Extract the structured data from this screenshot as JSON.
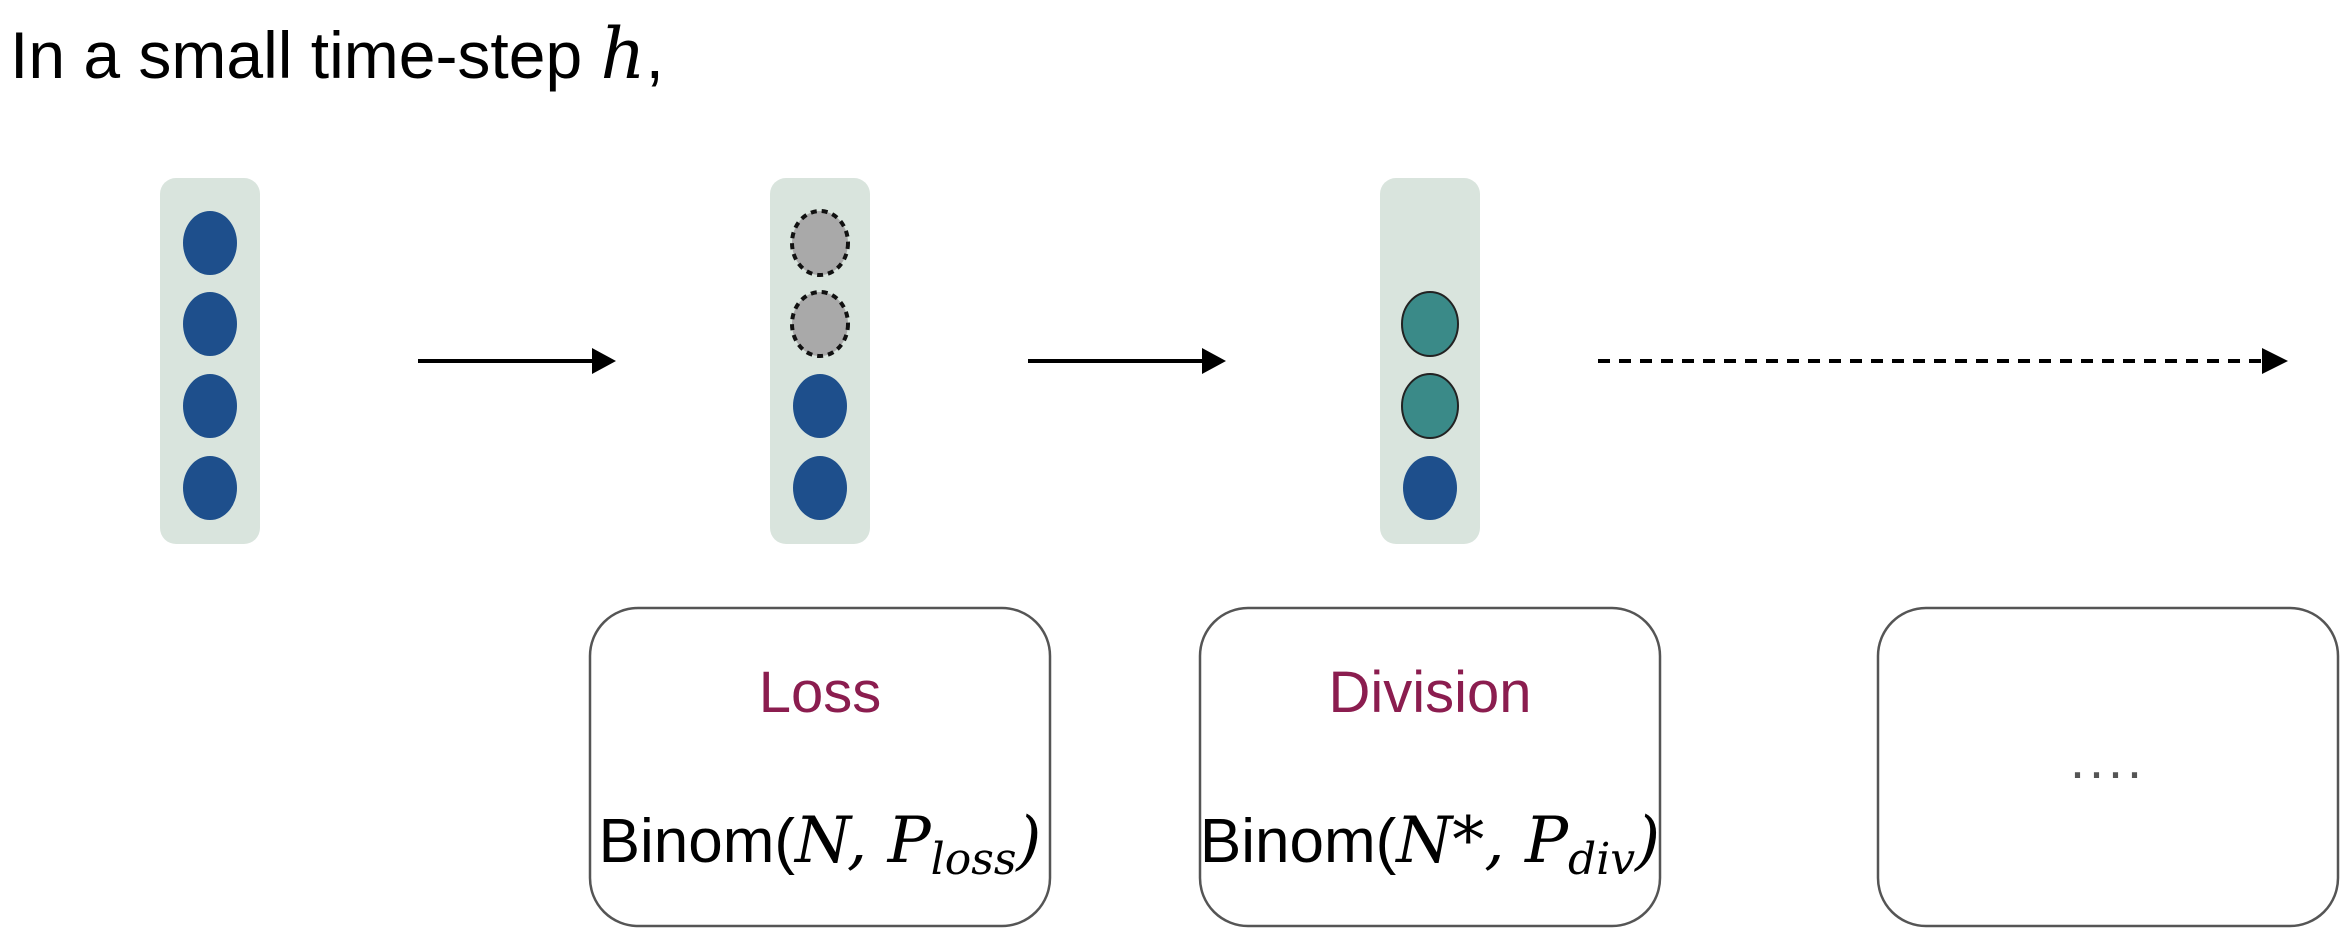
{
  "header": {
    "text": "In a small time-step ",
    "variable": "h",
    "comma": ","
  },
  "colors": {
    "column_bg": "#d9e4dd",
    "cell_blue": "#1e4f8c",
    "cell_lost": "#a9a9a9",
    "cell_divided": "#3a8a88",
    "label": "#8b1d4f"
  },
  "icons": {
    "arrow_solid": "arrow-right-icon",
    "arrow_dashed": "dashed-arrow-right-icon"
  },
  "columns": [
    {
      "name": "initial",
      "cells": [
        "blue",
        "blue",
        "blue",
        "blue"
      ]
    },
    {
      "name": "after-loss",
      "cells": [
        "lost",
        "lost",
        "blue",
        "blue"
      ]
    },
    {
      "name": "after-division",
      "cells": [
        "empty",
        "divided",
        "divided",
        "blue"
      ]
    }
  ],
  "boxes": [
    {
      "title": "Loss",
      "formula": {
        "prefix": "Binom(",
        "n": "N",
        "sep": ", ",
        "p": "P",
        "sub": "loss",
        "suffix": ")"
      }
    },
    {
      "title": "Division",
      "formula": {
        "prefix": "Binom(",
        "n": "N*",
        "sep": ", ",
        "p": "P",
        "sub": "div",
        "suffix": ")"
      }
    },
    {
      "ellipsis": "...."
    }
  ]
}
